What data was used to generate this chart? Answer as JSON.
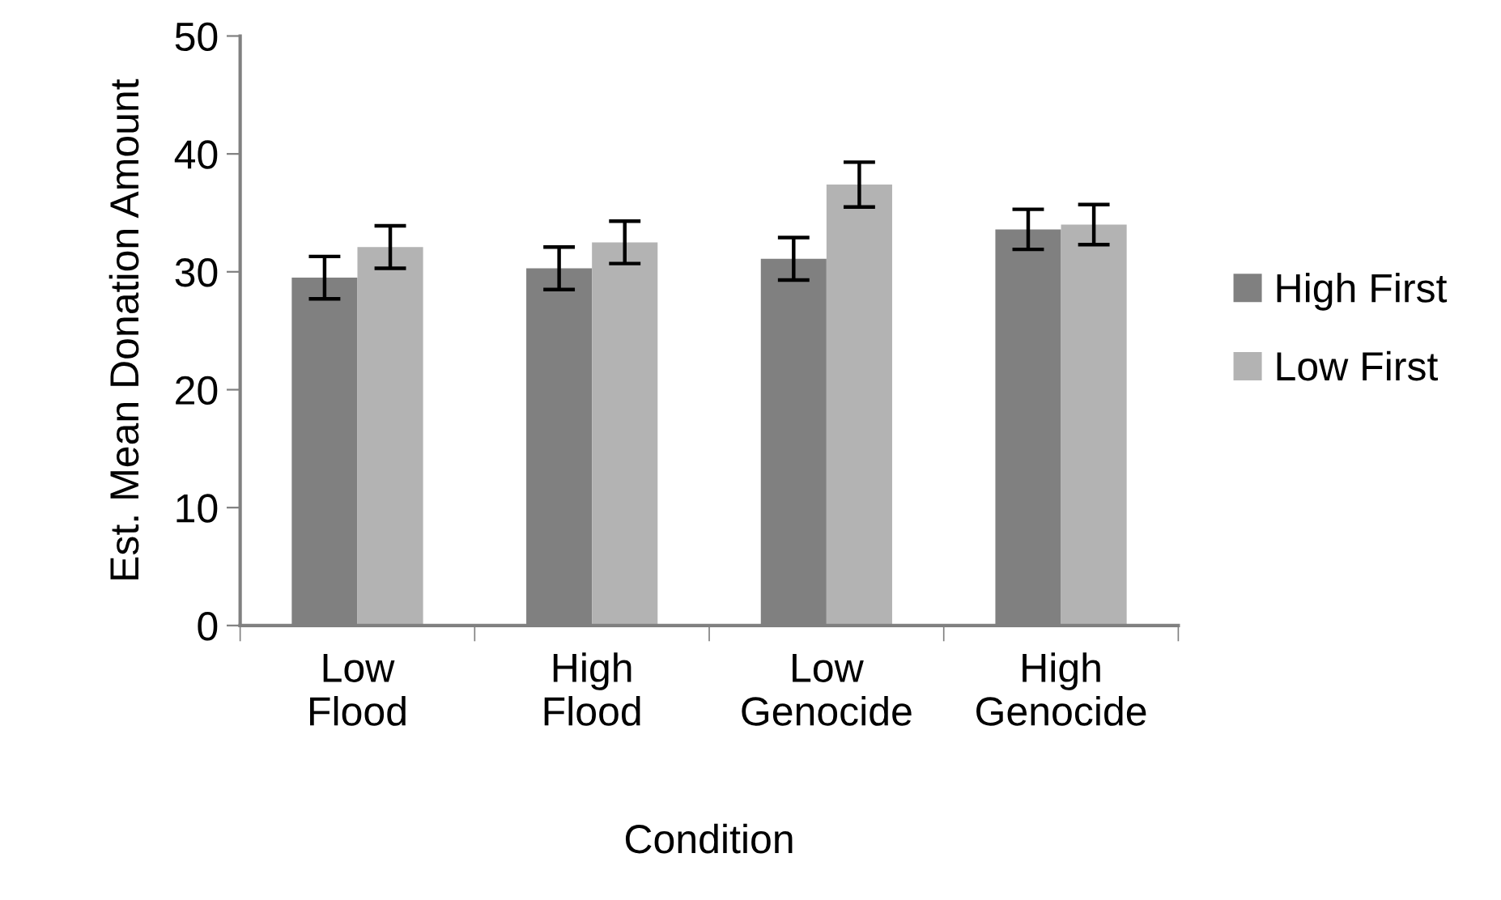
{
  "chart_data": {
    "type": "bar",
    "xlabel": "Condition",
    "ylabel": "Est. Mean Donation Amount",
    "categories": [
      "Low\nFlood",
      "High\nFlood",
      "Low\nGenocide",
      "High\nGenocide"
    ],
    "series": [
      {
        "name": "High First",
        "color": "#808080",
        "values": [
          29.5,
          30.3,
          31.1,
          33.6
        ],
        "errors": [
          1.8,
          1.8,
          1.8,
          1.7
        ]
      },
      {
        "name": "Low First",
        "color": "#b3b3b3",
        "values": [
          32.1,
          32.5,
          37.4,
          34.0
        ],
        "errors": [
          1.8,
          1.8,
          1.9,
          1.7
        ]
      }
    ],
    "ylim": [
      0,
      50
    ],
    "yticks": [
      0,
      10,
      20,
      30,
      40,
      50
    ],
    "grid": false,
    "legend": "right"
  }
}
